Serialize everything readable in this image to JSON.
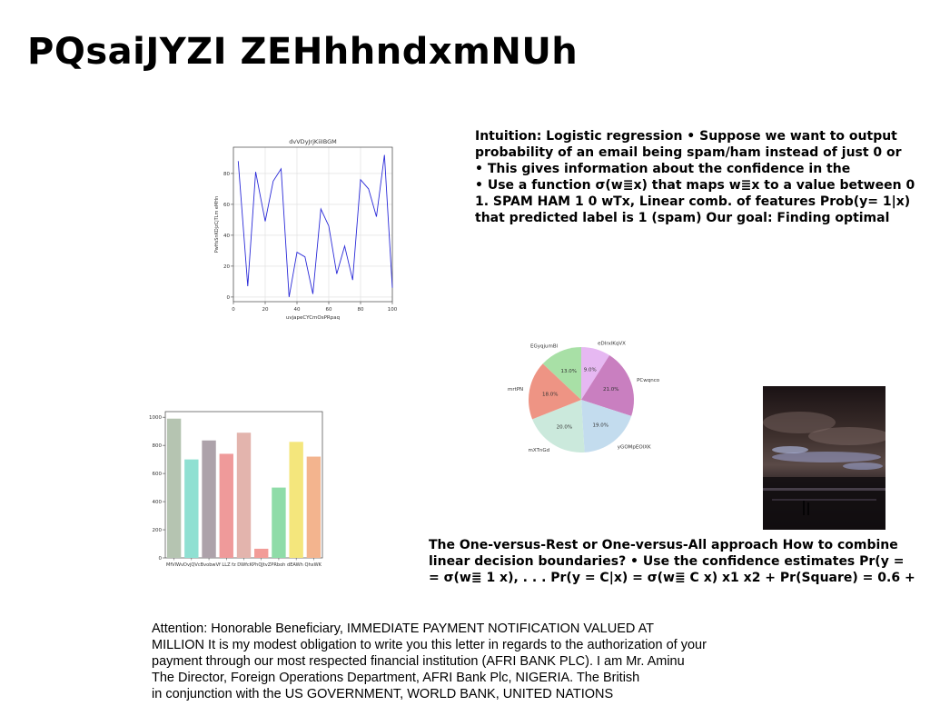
{
  "slide": {
    "title": "PQsaiJYZI ZEHhhndxmNUh",
    "paragraph1_lines": [
      "Intuition: Logistic regression • Suppose we want to output",
      "probability of an email being spam/ham instead of just 0 or",
      "• This gives information about the confidence in the",
      "• Use a function σ(w≣x) that maps w≣x to a value between 0",
      "1. SPAM HAM 1 0 wTx, Linear comb. of features Prob(y= 1|x)",
      "that predicted label is 1 (spam) Our goal: Finding optimal"
    ],
    "paragraph2_lines": [
      "The One-versus-Rest or One-versus-All approach How to combine",
      "linear decision boundaries? • Use the confidence estimates Pr(y =",
      "= σ(w≣ 1 x), . . . Pr(y = C|x) = σ(w≣ C x) x1 x2 + Pr(Square) = 0.6 +"
    ],
    "letter_lines": [
      "Attention: Honorable Beneficiary, IMMEDIATE PAYMENT NOTIFICATION VALUED AT",
      "MILLION It is my modest obligation to write you this letter in regards to the authorization of your",
      "payment through our most respected financial institution (AFRI BANK PLC). I am Mr. Aminu",
      "The Director, Foreign Operations Department, AFRI Bank Plc, NIGERIA. The British",
      "in conjunction with the US GOVERNMENT, WORLD BANK, UNITED NATIONS"
    ]
  },
  "chart_data": [
    {
      "type": "line",
      "title": "dvVDyJrjKiiIBGM",
      "xlabel": "uvjapeCYCmOsPRpaq",
      "ylabel": "PwHsSnKDjzCjTLm eMHn",
      "xlim": [
        0,
        100
      ],
      "ylim": [
        -3,
        97
      ],
      "xticks": [
        0,
        20,
        40,
        60,
        80,
        100
      ],
      "yticks": [
        0,
        20,
        40,
        60,
        80
      ],
      "grid": true,
      "color": "#2a2ad8",
      "series": [
        {
          "x": [
            3,
            9,
            14,
            20,
            25,
            30,
            35,
            40,
            45,
            50,
            55,
            60,
            65,
            70,
            75,
            80,
            85,
            90,
            95,
            100
          ],
          "values": [
            88,
            7,
            81,
            49,
            75,
            83,
            0,
            29,
            26,
            2,
            57,
            46,
            15,
            33,
            11,
            76,
            70,
            52,
            92,
            6
          ]
        }
      ]
    },
    {
      "type": "bar",
      "title": "",
      "categories": [
        "MfVlWv",
        "DvjQVc",
        "BvobwVf",
        "LLZ fz",
        "DWfcKP",
        "hQJtvZP",
        "Rboh",
        "dEAWh",
        "QhxWK"
      ],
      "tick_labels_text": "MfVlWvDvjQVcBvobwVf LLZ fz DWfcKPhQJtvZPRboh dEAWh QhxWK",
      "values": [
        990,
        700,
        835,
        740,
        890,
        65,
        500,
        825,
        720
      ],
      "colors": [
        "#b5c4b1",
        "#8fe0d2",
        "#ada2aa",
        "#ef9a9a",
        "#e3b4ad",
        "#f29c98",
        "#8fdca8",
        "#f4e67c",
        "#f3b48e"
      ],
      "ylim": [
        0,
        1040
      ],
      "yticks": [
        0,
        200,
        400,
        600,
        800,
        1000
      ],
      "grid": false
    },
    {
      "type": "pie",
      "title": "",
      "slices": [
        {
          "label": "eDIrxlKqVX",
          "value": 9.0,
          "pct": "9.0%",
          "color": "#e6b8f2"
        },
        {
          "label": "PCwqnco",
          "value": 21.0,
          "pct": "21.0%",
          "color": "#c97fc0"
        },
        {
          "label": "yGOMpEOlXK",
          "value": 19.0,
          "pct": "19.0%",
          "color": "#c3dcee"
        },
        {
          "label": "mXTnGd",
          "value": 20.0,
          "pct": "20.0%",
          "color": "#cbe9dc"
        },
        {
          "label": "mrtPN",
          "value": 18.0,
          "pct": "18.0%",
          "color": "#ee9484"
        },
        {
          "label": "EGyqjumBl",
          "value": 13.0,
          "pct": "13.0%",
          "color": "#a8e0a6"
        }
      ],
      "start": "12 o'clock",
      "direction": "clockwise"
    }
  ],
  "image": {
    "description_icon": "photo-icon",
    "colors": [
      "#0c0a0b",
      "#4b3a36",
      "#8a7c92",
      "#2c2326"
    ]
  }
}
